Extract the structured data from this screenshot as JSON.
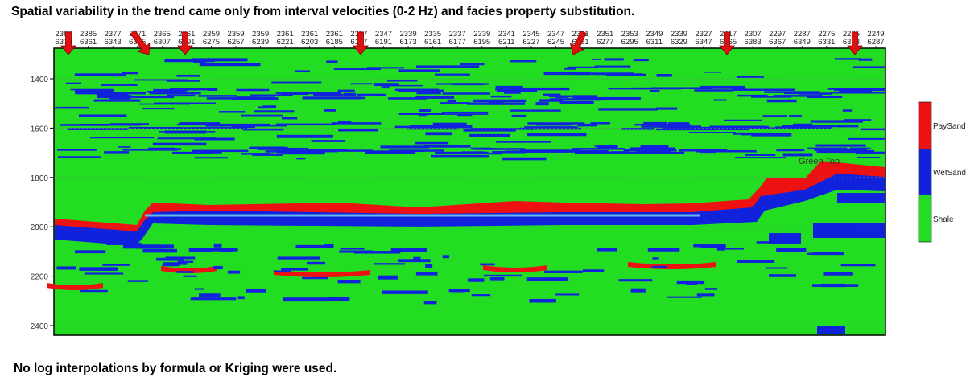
{
  "title": "Spatial variability in the trend came only from interval velocities (0-2 Hz) and facies property substitution.",
  "footnote": "No log interpolations by formula or Kriging were used.",
  "section": {
    "trace_labels_top": [
      "2387",
      "2385",
      "2377",
      "2371",
      "2365",
      "2361",
      "2359",
      "2359",
      "2359",
      "2361",
      "2361",
      "2361",
      "2357",
      "2347",
      "2339",
      "2335",
      "2337",
      "2339",
      "2341",
      "2345",
      "2347",
      "2351",
      "2351",
      "2353",
      "2349",
      "2339",
      "2327",
      "2317",
      "2307",
      "2297",
      "2287",
      "2275",
      "2265",
      "2249"
    ],
    "trace_labels_bottom": [
      "6379",
      "6361",
      "6343",
      "6325",
      "6307",
      "6291",
      "6275",
      "6257",
      "6239",
      "6221",
      "6203",
      "6185",
      "6197",
      "6191",
      "6173",
      "6161",
      "6177",
      "6195",
      "6211",
      "6227",
      "6245",
      "6261",
      "6277",
      "6295",
      "6311",
      "6329",
      "6347",
      "6365",
      "6383",
      "6367",
      "6349",
      "6331",
      "6313",
      "6287"
    ],
    "depth_ticks": [
      "1400",
      "1600",
      "1800",
      "2000",
      "2200",
      "2400"
    ],
    "horizon_label": "Green Top",
    "legend": [
      {
        "label": "PaySand",
        "color": "#ee1111"
      },
      {
        "label": "WetSand",
        "color": "#1122dd"
      },
      {
        "label": "Shale",
        "color": "#22dd22"
      }
    ],
    "colors": {
      "shale": "#22dd22",
      "wet_sand": "#1122dd",
      "pay_sand": "#ee1111",
      "arrow": "#e01010",
      "marker_line": "#66b8e8"
    }
  }
}
